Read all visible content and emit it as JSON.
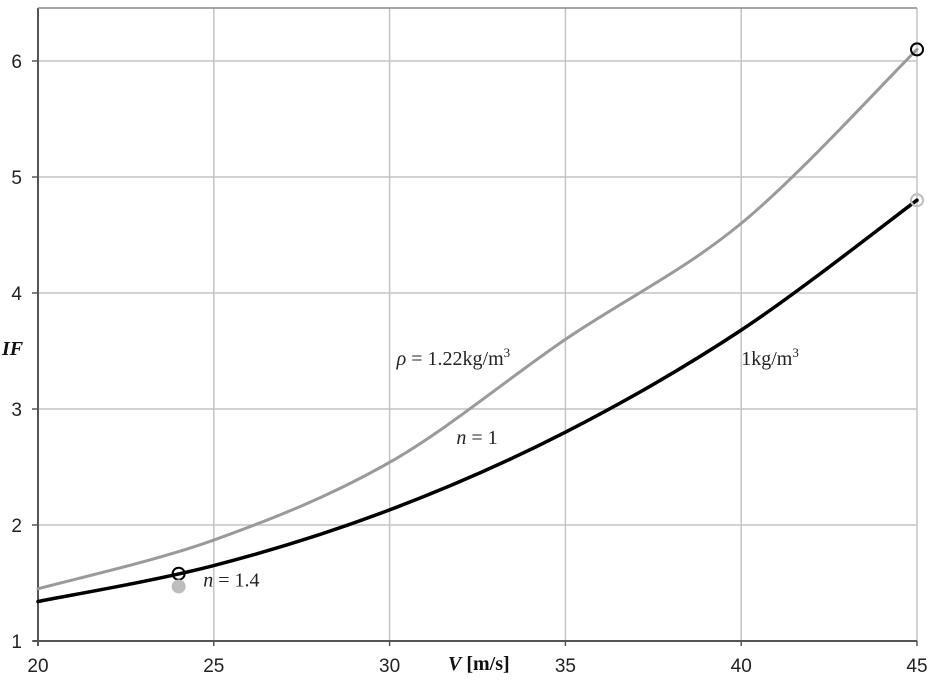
{
  "chart_data": {
    "type": "line",
    "title": "",
    "xlabel": "V [m/s]",
    "ylabel": "IF",
    "xlim": [
      20,
      45
    ],
    "ylim": [
      1,
      6.5
    ],
    "x_ticks": [
      20,
      25,
      30,
      35,
      40,
      45
    ],
    "y_ticks": [
      1,
      2,
      3,
      4,
      5,
      6
    ],
    "grid": true,
    "legend": null,
    "x": [
      20,
      25,
      30,
      35,
      40,
      45
    ],
    "series": [
      {
        "name": "rho = 1.22kg/m3",
        "color": "#9a9a9a",
        "values": [
          1.45,
          1.87,
          2.54,
          3.6,
          4.6,
          6.1
        ]
      },
      {
        "name": "1kg/m3",
        "color": "#000000",
        "values": [
          1.34,
          1.65,
          2.13,
          2.8,
          3.68,
          4.8
        ]
      }
    ],
    "markers": [
      {
        "x": 24,
        "y": 1.58,
        "style": "open-circle",
        "color": "#000000"
      },
      {
        "x": 24,
        "y": 1.47,
        "style": "filled-circle",
        "color": "#bdbdbd"
      },
      {
        "x": 45,
        "y": 6.1,
        "style": "open-circle",
        "color": "#000000"
      },
      {
        "x": 45,
        "y": 4.8,
        "style": "open-circle",
        "color": "#bdbdbd"
      }
    ],
    "annotations": [
      {
        "text_prefix": "ρ",
        "text": " = 1.22kg/m",
        "sup": "3",
        "x": 30.2,
        "y": 3.38
      },
      {
        "text": "1kg/m",
        "sup": "3",
        "x": 40.0,
        "y": 3.38
      },
      {
        "text_prefix": "n",
        "text": " = 1",
        "x": 31.9,
        "y": 2.7
      },
      {
        "text_prefix": "n",
        "text": " = 1.4",
        "x": 24.7,
        "y": 1.47
      }
    ]
  }
}
